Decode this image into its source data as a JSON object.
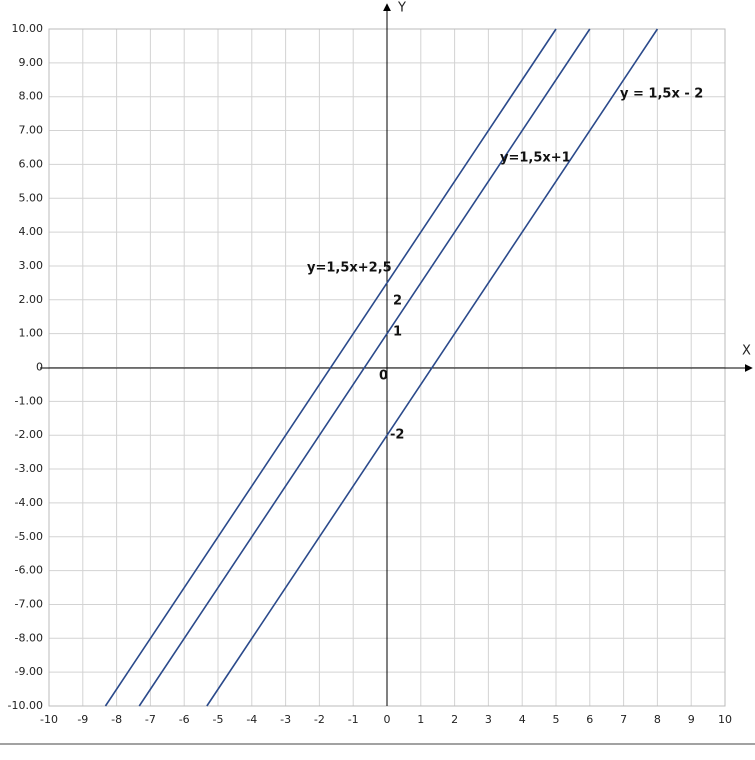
{
  "chart_data": {
    "type": "line",
    "x_label": "X",
    "y_label": "Y",
    "xlim": [
      -10,
      10
    ],
    "ylim": [
      -10,
      10
    ],
    "xticks": [
      -10,
      -9,
      -8,
      -7,
      -6,
      -5,
      -4,
      -3,
      -2,
      -1,
      0,
      1,
      2,
      3,
      4,
      5,
      6,
      7,
      8,
      9,
      10
    ],
    "yticks": [
      {
        "value": 10,
        "label": "10.00"
      },
      {
        "value": 9,
        "label": "9.00"
      },
      {
        "value": 8,
        "label": "8.00"
      },
      {
        "value": 7,
        "label": "7.00"
      },
      {
        "value": 6,
        "label": "6.00"
      },
      {
        "value": 5,
        "label": "5.00"
      },
      {
        "value": 4,
        "label": "4.00"
      },
      {
        "value": 3,
        "label": "3.00"
      },
      {
        "value": 2,
        "label": "2.00"
      },
      {
        "value": 1,
        "label": "1.00"
      },
      0,
      {
        "value": -1,
        "label": "-1.00"
      },
      {
        "value": -2,
        "label": "-2.00"
      },
      {
        "value": -3,
        "label": "-3.00"
      },
      {
        "value": -4,
        "label": "-4.00"
      },
      {
        "value": -5,
        "label": "-5.00"
      },
      {
        "value": -6,
        "label": "-6.00"
      },
      {
        "value": -7,
        "label": "-7.00"
      },
      {
        "value": -8,
        "label": "-8.00"
      },
      {
        "value": -9,
        "label": "-9.00"
      },
      {
        "value": -10,
        "label": "-10.00"
      }
    ],
    "grid": true,
    "series": [
      {
        "name": "y=1,5x+2,5",
        "color": "#2b4a8b",
        "x": [
          -8.33,
          5
        ],
        "values": [
          -10,
          10
        ]
      },
      {
        "name": "y=1,5x+1",
        "color": "#2b4a8b",
        "x": [
          -7.33,
          6
        ],
        "values": [
          -10,
          10
        ]
      },
      {
        "name": "y = 1,5x - 2",
        "color": "#2b4a8b",
        "x": [
          -5.33,
          8
        ],
        "values": [
          -10,
          10
        ]
      }
    ],
    "annotations": [
      "2",
      "1",
      "-2",
      "0"
    ]
  }
}
